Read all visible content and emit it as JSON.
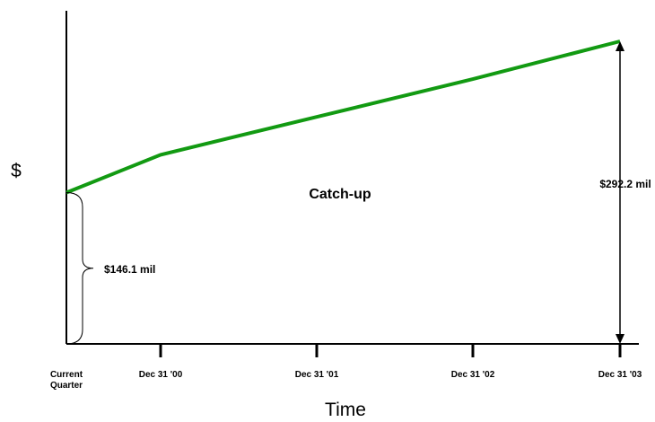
{
  "chart_data": {
    "type": "line",
    "title": "",
    "xlabel": "Time",
    "ylabel": "$",
    "categories": [
      "Current Quarter",
      "Dec 31 '00",
      "Dec 31 '01",
      "Dec 31 '02",
      "Dec 31 '03"
    ],
    "series": [
      {
        "values": [
          146.1,
          182.6,
          219.2,
          255.7,
          292.2
        ],
        "color": "#129a12"
      }
    ],
    "ylim": [
      0,
      292.2
    ],
    "grid": false,
    "annotations": {
      "start_brace_label": "$146.1 mil",
      "end_arrow_label": "$292.2 mil",
      "center_label": "Catch-up"
    }
  }
}
